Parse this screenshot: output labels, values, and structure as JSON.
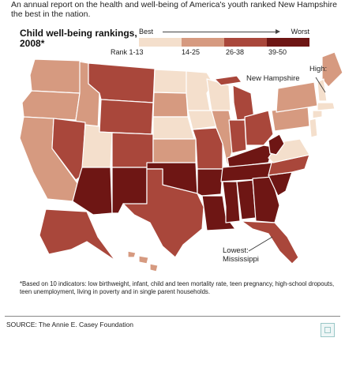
{
  "intro": "An annual report on the health and well-being of America's youth ranked New Hampshire the best in the nation.",
  "title": "Child well-being rankings, 2008*",
  "legend": {
    "best": "Best",
    "worst": "Worst",
    "rank_label": "Rank 1-13",
    "ranges": [
      "14-25",
      "26-38",
      "39-50"
    ],
    "colors": [
      "#f4dfcc",
      "#d69a80",
      "#a9473b",
      "#6e1614"
    ]
  },
  "callouts": {
    "high_label": "High:",
    "high_state": "New Hampshire",
    "low_label": "Lowest:",
    "low_state": "Mississippi"
  },
  "footnote": "*Based on 10 indicators: low birthweight, infant, child and teen mortality rate, teen pregnancy, high-school dropouts, teen unemployment, living in poverty and in single parent households.",
  "source": "SOURCE: The Annie E. Casey Foundation",
  "map_tiers": {
    "WA": 1,
    "OR": 1,
    "CA": 1,
    "ID": 1,
    "NV": 2,
    "MT": 2,
    "WY": 2,
    "UT": 0,
    "AZ": 3,
    "CO": 2,
    "NM": 3,
    "ND": 0,
    "SD": 1,
    "NE": 0,
    "KS": 1,
    "OK": 3,
    "TX": 2,
    "MN": 0,
    "IA": 0,
    "MO": 2,
    "AR": 3,
    "LA": 3,
    "WI": 0,
    "IL": 1,
    "MI": 2,
    "IN": 2,
    "OH": 2,
    "KY": 3,
    "TN": 3,
    "MS": 3,
    "AL": 3,
    "GA": 3,
    "FL": 2,
    "SC": 3,
    "NC": 2,
    "VA": 0,
    "WV": 3,
    "PA": 1,
    "NY": 1,
    "ME": 1,
    "NH": 0,
    "MA": 0,
    "CT": 0,
    "NJ": 0,
    "AK": 2,
    "HI": 1
  }
}
